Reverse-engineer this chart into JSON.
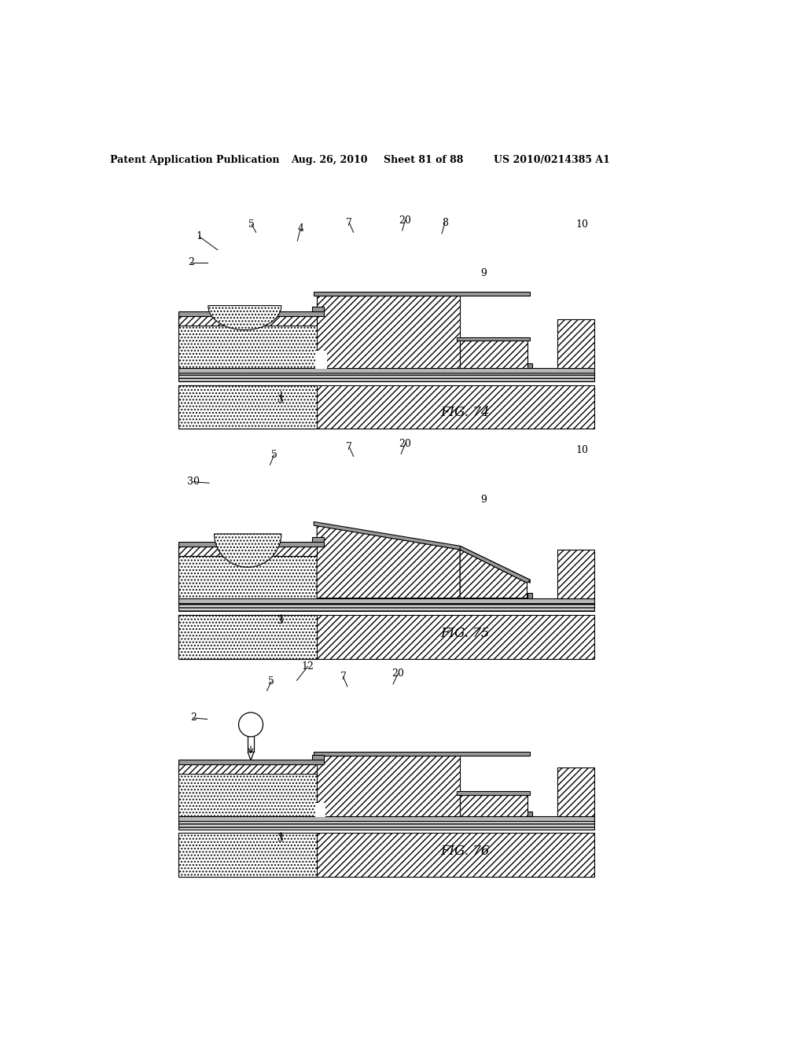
{
  "bg_color": "#ffffff",
  "header_text": "Patent Application Publication",
  "header_date": "Aug. 26, 2010",
  "header_sheet": "Sheet 81 of 88",
  "header_patent": "US 2010/0214385 A1",
  "fig74_label": "FIG. 74",
  "fig75_label": "FIG. 75",
  "fig76_label": "FIG. 76"
}
